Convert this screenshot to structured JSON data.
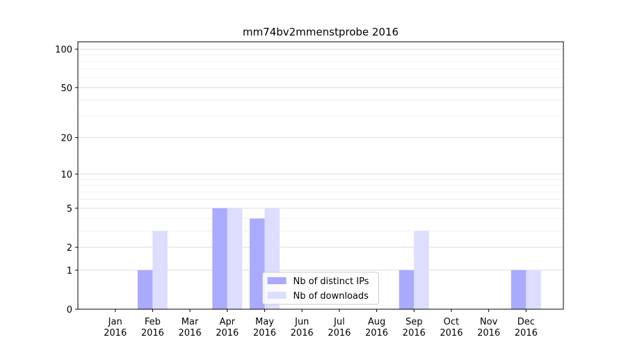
{
  "chart_data": {
    "type": "bar",
    "title": "mm74bv2mmenstprobe 2016",
    "categories": [
      "Jan\n2016",
      "Feb\n2016",
      "Mar\n2016",
      "Apr\n2016",
      "May\n2016",
      "Jun\n2016",
      "Jul\n2016",
      "Aug\n2016",
      "Sep\n2016",
      "Oct\n2016",
      "Nov\n2016",
      "Dec\n2016"
    ],
    "series": [
      {
        "name": "Nb of distinct IPs",
        "color": "#aaaaff",
        "values": [
          0,
          1,
          0,
          5,
          4,
          0,
          0,
          0,
          1,
          0,
          0,
          1
        ]
      },
      {
        "name": "Nb of downloads",
        "color": "#ddddff",
        "values": [
          0,
          3,
          0,
          5,
          5,
          0,
          0,
          0,
          3,
          0,
          0,
          1
        ]
      }
    ],
    "yscale": "log1p",
    "ylim": [
      0,
      114
    ],
    "yticks": [
      0,
      1,
      2,
      5,
      10,
      20,
      50,
      100
    ],
    "yticks_minor": [
      3,
      4,
      6,
      7,
      8,
      9,
      30,
      40,
      60,
      70,
      80,
      90
    ],
    "grid": true,
    "legend": "lower center"
  }
}
